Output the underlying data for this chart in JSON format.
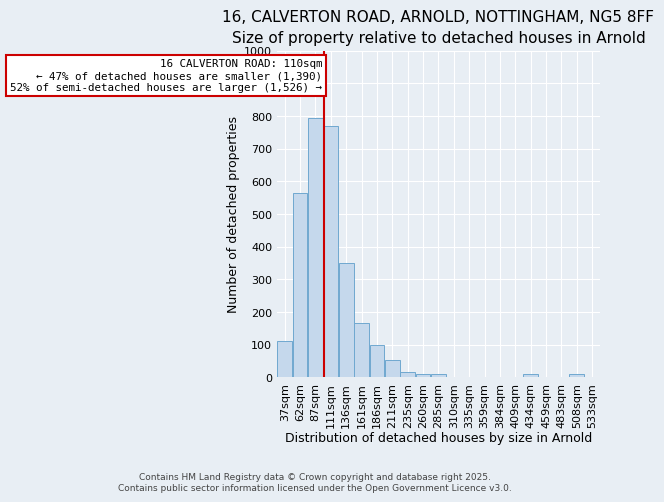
{
  "title_line1": "16, CALVERTON ROAD, ARNOLD, NOTTINGHAM, NG5 8FF",
  "title_line2": "Size of property relative to detached houses in Arnold",
  "xlabel": "Distribution of detached houses by size in Arnold",
  "ylabel": "Number of detached properties",
  "categories": [
    "37sqm",
    "62sqm",
    "87sqm",
    "111sqm",
    "136sqm",
    "161sqm",
    "186sqm",
    "211sqm",
    "235sqm",
    "260sqm",
    "285sqm",
    "310sqm",
    "335sqm",
    "359sqm",
    "384sqm",
    "409sqm",
    "434sqm",
    "459sqm",
    "483sqm",
    "508sqm",
    "533sqm"
  ],
  "values": [
    113,
    565,
    793,
    770,
    350,
    168,
    98,
    55,
    18,
    12,
    10,
    0,
    0,
    0,
    0,
    0,
    10,
    0,
    0,
    10,
    0
  ],
  "bar_color": "#c5d8ec",
  "bar_edge_color": "#6fa8d0",
  "vline_index": 3,
  "vline_color": "#cc0000",
  "annotation_text": "16 CALVERTON ROAD: 110sqm\n← 47% of detached houses are smaller (1,390)\n52% of semi-detached houses are larger (1,526) →",
  "annotation_box_color": "#ffffff",
  "annotation_edge_color": "#cc0000",
  "ylim": [
    0,
    1000
  ],
  "yticks": [
    0,
    100,
    200,
    300,
    400,
    500,
    600,
    700,
    800,
    900,
    1000
  ],
  "background_color": "#e8eef4",
  "grid_color": "#ffffff",
  "title_fontsize": 11,
  "subtitle_fontsize": 10,
  "axis_label_fontsize": 9,
  "tick_fontsize": 8,
  "footer_text": "Contains HM Land Registry data © Crown copyright and database right 2025.\nContains public sector information licensed under the Open Government Licence v3.0."
}
